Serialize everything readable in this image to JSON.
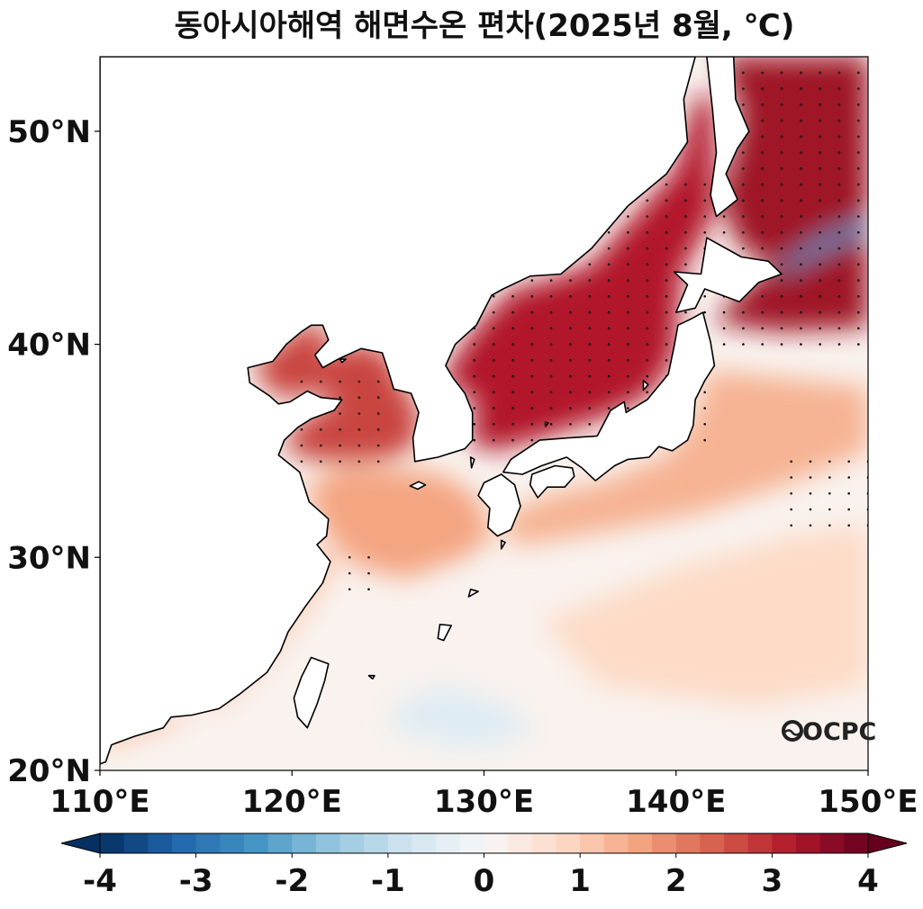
{
  "title": "동아시아해역 해면수온 편차(2025년 8월, ℃)",
  "map": {
    "lon_range": [
      110,
      150
    ],
    "lat_range": [
      20,
      53.5
    ],
    "lon_ticks": [
      {
        "value": 110,
        "label": "110°E"
      },
      {
        "value": 120,
        "label": "120°E"
      },
      {
        "value": 130,
        "label": "130°E"
      },
      {
        "value": 140,
        "label": "140°E"
      },
      {
        "value": 150,
        "label": "150°E"
      }
    ],
    "lat_ticks": [
      {
        "value": 20,
        "label": "20°N"
      },
      {
        "value": 30,
        "label": "30°N"
      },
      {
        "value": 40,
        "label": "40°N"
      },
      {
        "value": 50,
        "label": "50°N"
      }
    ],
    "land_color": "#ffffff",
    "coast_color": "#000000",
    "anomaly_regions": [
      {
        "name": "sea-of-japan",
        "level": 3.2,
        "points": [
          [
            127.8,
            38.4
          ],
          [
            129.6,
            40.8
          ],
          [
            131.5,
            42.6
          ],
          [
            133.0,
            42.9
          ],
          [
            135.5,
            43.7
          ],
          [
            138.0,
            46.2
          ],
          [
            140.0,
            48.2
          ],
          [
            141.1,
            51.8
          ],
          [
            142.0,
            51.5
          ],
          [
            141.9,
            46.0
          ],
          [
            140.3,
            43.3
          ],
          [
            140.1,
            41.3
          ],
          [
            139.9,
            39.3
          ],
          [
            138.6,
            37.6
          ],
          [
            136.3,
            36.6
          ],
          [
            132.6,
            35.5
          ],
          [
            130.5,
            35.0
          ],
          [
            129.3,
            35.3
          ],
          [
            129.6,
            37.3
          ]
        ]
      },
      {
        "name": "bohai-yellow-sea",
        "level": 2.7,
        "points": [
          [
            118.0,
            39.0
          ],
          [
            119.3,
            40.0
          ],
          [
            120.8,
            41.0
          ],
          [
            122.0,
            40.7
          ],
          [
            121.5,
            39.3
          ],
          [
            122.5,
            39.9
          ],
          [
            124.2,
            40.0
          ],
          [
            125.2,
            39.3
          ],
          [
            125.7,
            38.1
          ],
          [
            126.6,
            37.0
          ],
          [
            126.5,
            35.3
          ],
          [
            125.0,
            34.6
          ],
          [
            122.5,
            34.5
          ],
          [
            120.8,
            34.6
          ],
          [
            119.5,
            35.2
          ],
          [
            120.5,
            36.5
          ],
          [
            122.5,
            37.3
          ],
          [
            121.0,
            37.8
          ],
          [
            119.8,
            37.4
          ],
          [
            118.8,
            37.9
          ],
          [
            118.2,
            38.6
          ]
        ]
      },
      {
        "name": "okhotsk-east-hokkaido",
        "level": 3.4,
        "points": [
          [
            142.3,
            53.5
          ],
          [
            150,
            53.5
          ],
          [
            150,
            40.8
          ],
          [
            145.5,
            40.6
          ],
          [
            142.0,
            41.0
          ],
          [
            143.4,
            42.5
          ],
          [
            145.0,
            43.7
          ],
          [
            143.3,
            44.6
          ],
          [
            142.3,
            46.8
          ],
          [
            143.0,
            49.0
          ],
          [
            143.4,
            50.8
          ]
        ]
      },
      {
        "name": "east-china-sea",
        "level": 1.6,
        "points": [
          [
            120.7,
            33.3
          ],
          [
            122.8,
            34.3
          ],
          [
            125.5,
            34.1
          ],
          [
            127.5,
            34.0
          ],
          [
            129.5,
            33.0
          ],
          [
            130.5,
            31.0
          ],
          [
            129.0,
            30.0
          ],
          [
            126.0,
            29.0
          ],
          [
            123.5,
            29.5
          ],
          [
            122.3,
            30.5
          ],
          [
            121.5,
            31.5
          ]
        ]
      },
      {
        "name": "kuroshio-south-japan",
        "level": 1.4,
        "points": [
          [
            131.0,
            32.0
          ],
          [
            133.5,
            33.0
          ],
          [
            136.0,
            33.5
          ],
          [
            139.5,
            34.8
          ],
          [
            141.0,
            36.6
          ],
          [
            141.7,
            38.8
          ],
          [
            145.0,
            38.5
          ],
          [
            150,
            38.0
          ],
          [
            150,
            35.0
          ],
          [
            146.0,
            33.5
          ],
          [
            141.0,
            32.0
          ],
          [
            135.0,
            31.0
          ],
          [
            131.5,
            30.5
          ]
        ]
      },
      {
        "name": "south-china-coast",
        "level": 1.1,
        "points": [
          [
            110,
            22.3
          ],
          [
            113.0,
            22.6
          ],
          [
            116.5,
            23.2
          ],
          [
            119.0,
            25.5
          ],
          [
            121.5,
            28.5
          ],
          [
            122.5,
            30.0
          ],
          [
            121.0,
            30.5
          ],
          [
            120.0,
            28.0
          ],
          [
            117.5,
            25.0
          ],
          [
            114.0,
            22.2
          ],
          [
            110,
            21.0
          ]
        ]
      },
      {
        "name": "western-pacific-warm",
        "level": 0.8,
        "points": [
          [
            133.0,
            27.0
          ],
          [
            140.0,
            29.5
          ],
          [
            146.0,
            31.0
          ],
          [
            150,
            31.5
          ],
          [
            150,
            24.0
          ],
          [
            144.0,
            23.0
          ],
          [
            136.0,
            24.0
          ]
        ]
      }
    ],
    "cool_regions": [
      {
        "name": "philippine-sea-cool",
        "level": -0.5,
        "points": [
          [
            125.0,
            22.0
          ],
          [
            129.0,
            21.0
          ],
          [
            132.5,
            21.6
          ],
          [
            131.5,
            23.0
          ],
          [
            128.0,
            24.0
          ],
          [
            125.5,
            23.2
          ]
        ]
      },
      {
        "name": "oyashio-cold-tongue",
        "level": -2.5,
        "points": [
          [
            145.3,
            43.2
          ],
          [
            147.0,
            44.0
          ],
          [
            150,
            45.3
          ],
          [
            150,
            46.0
          ],
          [
            147.5,
            45.0
          ],
          [
            145.5,
            43.8
          ]
        ]
      }
    ],
    "stipple_regions": [
      {
        "lon": [
          129.5,
          141.5
        ],
        "lat": [
          35.5,
          47.5
        ]
      },
      {
        "lon": [
          120.5,
          125.0
        ],
        "lat": [
          34.5,
          38.5
        ]
      },
      {
        "lon": [
          142.5,
          150.0
        ],
        "lat": [
          40.0,
          53.0
        ]
      },
      {
        "lon": [
          146.0,
          150.0
        ],
        "lat": [
          31.5,
          35.0
        ]
      },
      {
        "lon": [
          123.0,
          124.5
        ],
        "lat": [
          28.5,
          30.5
        ]
      }
    ]
  },
  "logo": {
    "text": "OCPC"
  },
  "colorbar": {
    "min": -4,
    "max": 4,
    "step": 0.25,
    "extend": "both",
    "ticks": [
      {
        "value": -4,
        "label": "-4"
      },
      {
        "value": -3,
        "label": "-3"
      },
      {
        "value": -2,
        "label": "-2"
      },
      {
        "value": -1,
        "label": "-1"
      },
      {
        "value": 0,
        "label": "0"
      },
      {
        "value": 1,
        "label": "1"
      },
      {
        "value": 2,
        "label": "2"
      },
      {
        "value": 3,
        "label": "3"
      },
      {
        "value": 4,
        "label": "4"
      }
    ],
    "colormap": [
      "#053061",
      "#2166ac",
      "#4393c3",
      "#92c5de",
      "#d1e5f0",
      "#f7f7f7",
      "#fddbc7",
      "#f4a582",
      "#d6604d",
      "#b2182b",
      "#67001f"
    ]
  }
}
